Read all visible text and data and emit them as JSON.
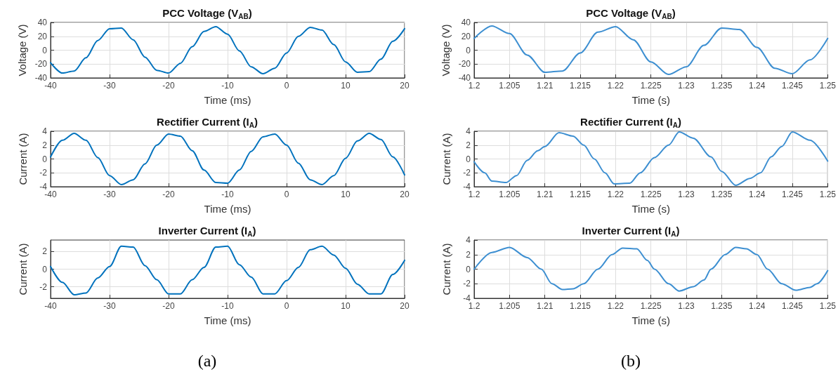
{
  "chart_data": [
    {
      "type": "line",
      "title": "PCC Voltage (V$_{AB}$)",
      "xlabel": "Time (ms)",
      "ylabel": "Voltage (V)",
      "xlim": [
        -40,
        20
      ],
      "xticks": [
        -40,
        -30,
        -20,
        -10,
        0,
        10,
        20
      ],
      "ylim": [
        -40,
        40
      ],
      "yticks": [
        -40,
        -20,
        0,
        20,
        40
      ],
      "grid": true,
      "marker": "none",
      "line_style": "solid",
      "x": [
        -40,
        -38,
        -36,
        -34,
        -32,
        -30,
        -28,
        -26,
        -24,
        -22,
        -20,
        -18,
        -16,
        -14,
        -12,
        -10,
        -8,
        -6,
        -4,
        -2,
        0,
        2,
        4,
        6,
        8,
        10,
        12,
        14,
        16,
        18,
        20
      ],
      "series": [
        {
          "color": "#0072bd",
          "values": [
            -18,
            -33,
            -30,
            -11,
            14,
            31,
            32,
            15,
            -10,
            -29,
            -33,
            -19,
            5,
            27,
            34,
            23,
            -1,
            -24,
            -34,
            -26,
            -4,
            20,
            33,
            29,
            8,
            -17,
            -32,
            -31,
            -13,
            13,
            31
          ]
        }
      ]
    },
    {
      "type": "line",
      "title": "PCC Voltage (V$_{AB}$)",
      "xlabel": "Time (s)",
      "ylabel": "Voltage (V)",
      "xlim": [
        1.2,
        1.25
      ],
      "xticks": [
        1.2,
        1.205,
        1.21,
        1.215,
        1.22,
        1.225,
        1.23,
        1.235,
        1.24,
        1.245,
        1.25
      ],
      "ylim": [
        -40,
        40
      ],
      "yticks": [
        -40,
        -20,
        0,
        20,
        40
      ],
      "grid": true,
      "marker": "none",
      "line_style": "solid",
      "x": [
        1.2,
        1.2025,
        1.205,
        1.2075,
        1.21,
        1.2125,
        1.215,
        1.2175,
        1.22,
        1.2225,
        1.225,
        1.2275,
        1.23,
        1.2325,
        1.235,
        1.2375,
        1.24,
        1.2425,
        1.245,
        1.2475,
        1.25
      ],
      "series": [
        {
          "color": "#3d8fd1",
          "values": [
            17,
            35,
            24,
            -7,
            -32,
            -30,
            -4,
            26,
            34,
            15,
            -17,
            -35,
            -24,
            7,
            32,
            30,
            4,
            -26,
            -34,
            -14,
            17
          ]
        }
      ]
    },
    {
      "type": "line",
      "title": "Rectifier Current (I$_{A}$)",
      "xlabel": "Time (ms)",
      "ylabel": "Current (A)",
      "xlim": [
        -40,
        20
      ],
      "xticks": [
        -40,
        -30,
        -20,
        -10,
        0,
        10,
        20
      ],
      "ylim": [
        -4,
        4
      ],
      "yticks": [
        -4,
        -2,
        0,
        2,
        4
      ],
      "grid": true,
      "marker": "none",
      "line_style": "solid",
      "x": [
        -40,
        -38,
        -36,
        -34,
        -32,
        -30,
        -28,
        -26,
        -24,
        -22,
        -20,
        -18,
        -16,
        -14,
        -12,
        -10,
        -8,
        -6,
        -4,
        -2,
        0,
        2,
        4,
        6,
        8,
        10,
        12,
        14,
        16,
        18,
        20
      ],
      "series": [
        {
          "color": "#0072bd",
          "values": [
            0.3,
            2.7,
            3.7,
            2.7,
            0.2,
            -2.4,
            -3.7,
            -3.0,
            -0.7,
            2.0,
            3.6,
            3.3,
            1.2,
            -1.6,
            -3.4,
            -3.5,
            -1.6,
            1.1,
            3.2,
            3.6,
            2.0,
            -0.6,
            -3.0,
            -3.7,
            -2.4,
            0.1,
            2.6,
            3.7,
            2.8,
            0.3,
            -2.3
          ]
        }
      ]
    },
    {
      "type": "line",
      "title": "Rectifier Current (I$_{A}$)",
      "xlabel": "Time (s)",
      "ylabel": "Current (A)",
      "xlim": [
        1.2,
        1.25
      ],
      "xticks": [
        1.2,
        1.205,
        1.21,
        1.215,
        1.22,
        1.225,
        1.23,
        1.235,
        1.24,
        1.245,
        1.25
      ],
      "ylim": [
        -4,
        4
      ],
      "yticks": [
        -4,
        -2,
        0,
        2,
        4
      ],
      "grid": true,
      "marker": "none",
      "line_style": "solid",
      "x": [
        1.2,
        1.2015,
        1.2025,
        1.2045,
        1.206,
        1.2075,
        1.209,
        1.21,
        1.212,
        1.214,
        1.2155,
        1.217,
        1.2185,
        1.2198,
        1.222,
        1.2235,
        1.2255,
        1.2275,
        1.229,
        1.231,
        1.2335,
        1.235,
        1.237,
        1.239,
        1.2405,
        1.242,
        1.2435,
        1.245,
        1.2475,
        1.25
      ],
      "series": [
        {
          "color": "#3d8fd1",
          "values": [
            -0.4,
            -2.0,
            -3.2,
            -3.4,
            -2.4,
            -0.2,
            1.2,
            1.8,
            3.8,
            3.3,
            2.0,
            0,
            -2.0,
            -3.6,
            -3.5,
            -2.0,
            0.2,
            2.0,
            3.9,
            3.0,
            0.3,
            -1.8,
            -3.8,
            -2.8,
            -2.0,
            0.3,
            1.8,
            3.9,
            2.7,
            -0.3
          ]
        }
      ]
    },
    {
      "type": "line",
      "title": "Inverter Current (I$_{A}$)",
      "xlabel": "Time (ms)",
      "ylabel": "Current (A)",
      "annotations": [
        "(a)"
      ],
      "xlim": [
        -40,
        20
      ],
      "xticks": [
        -40,
        -30,
        -20,
        -10,
        0,
        10,
        20
      ],
      "ylim": [
        -3.3,
        3.3
      ],
      "yticks": [
        -2,
        0,
        2
      ],
      "grid": true,
      "marker": "none",
      "line_style": "solid",
      "x": [
        -40,
        -38,
        -36,
        -34,
        -32,
        -30,
        -28,
        -26,
        -24,
        -22,
        -20,
        -18,
        -16,
        -14,
        -12,
        -10,
        -8,
        -6,
        -4,
        -2,
        0,
        2,
        4,
        6,
        8,
        10,
        12,
        14,
        16,
        18,
        20
      ],
      "series": [
        {
          "color": "#0072bd",
          "values": [
            0.3,
            -1.5,
            -2.9,
            -2.7,
            -1.0,
            0.3,
            2.6,
            2.5,
            0.4,
            -1.2,
            -2.8,
            -2.8,
            -1.2,
            0.2,
            2.5,
            2.6,
            0.5,
            -0.9,
            -2.8,
            -2.8,
            -1.3,
            0.2,
            2.2,
            2.6,
            1.6,
            0.1,
            -1.7,
            -2.8,
            -2.8,
            -0.6,
            1.0
          ]
        }
      ]
    },
    {
      "type": "line",
      "title": "Inverter Current (I$_{A}$)",
      "xlabel": "Time (s)",
      "ylabel": "Current (A)",
      "annotations": [
        "(b)"
      ],
      "xlim": [
        1.2,
        1.25
      ],
      "xticks": [
        1.2,
        1.205,
        1.21,
        1.215,
        1.22,
        1.225,
        1.23,
        1.235,
        1.24,
        1.245,
        1.25
      ],
      "ylim": [
        -4,
        4
      ],
      "yticks": [
        -4,
        -2,
        0,
        2,
        4
      ],
      "grid": true,
      "marker": "none",
      "line_style": "solid",
      "x": [
        1.2,
        1.2025,
        1.205,
        1.2075,
        1.2095,
        1.211,
        1.2125,
        1.214,
        1.2155,
        1.2175,
        1.2195,
        1.221,
        1.223,
        1.2245,
        1.2255,
        1.2275,
        1.229,
        1.231,
        1.2325,
        1.2335,
        1.2355,
        1.237,
        1.2385,
        1.24,
        1.2415,
        1.2435,
        1.2455,
        1.2475,
        1.2485,
        1.25
      ],
      "series": [
        {
          "color": "#3d8fd1",
          "values": [
            0,
            2.3,
            3.0,
            1.6,
            0,
            -2.0,
            -2.8,
            -2.7,
            -2.0,
            0,
            2.0,
            2.9,
            2.8,
            1.2,
            0,
            -2.0,
            -3.0,
            -2.4,
            -1.5,
            0,
            2.0,
            3.0,
            2.8,
            2.0,
            0,
            -2.0,
            -2.9,
            -2.5,
            -2.0,
            -0.2
          ]
        }
      ]
    }
  ]
}
